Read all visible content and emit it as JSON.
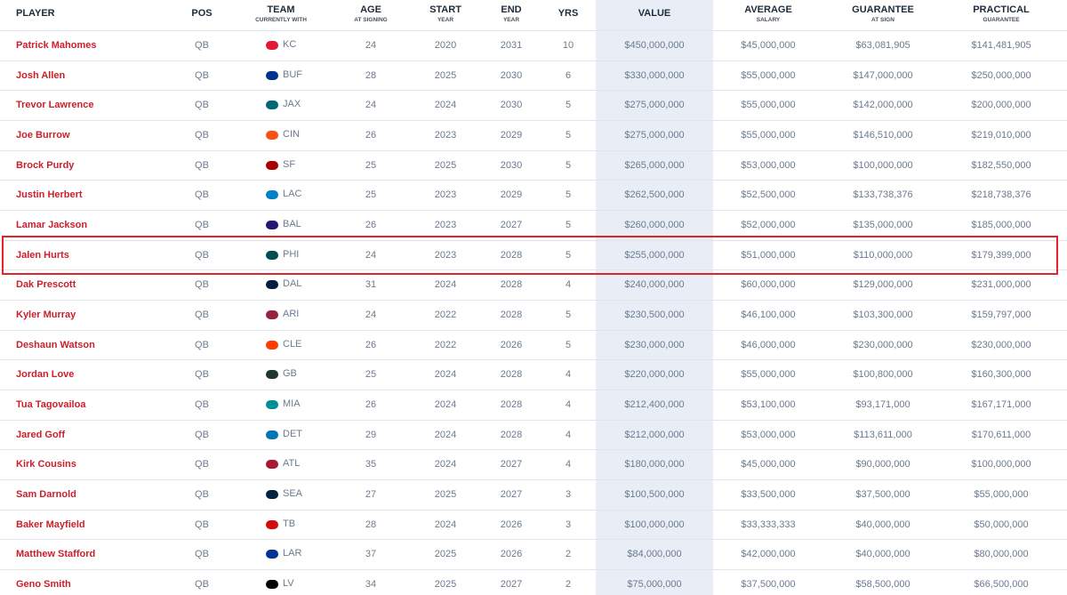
{
  "table": {
    "columns": [
      {
        "title": "PLAYER"
      },
      {
        "title": "POS"
      },
      {
        "title": "TEAM",
        "sub": "CURRENTLY WITH"
      },
      {
        "title": "AGE",
        "sub": "AT SIGNING"
      },
      {
        "title": "START",
        "sub": "YEAR"
      },
      {
        "title": "END",
        "sub": "YEAR"
      },
      {
        "title": "YRS"
      },
      {
        "title": "VALUE"
      },
      {
        "title": "AVERAGE",
        "sub": "SALARY"
      },
      {
        "title": "GUARANTEE",
        "sub": "AT SIGN"
      },
      {
        "title": "PRACTICAL",
        "sub": "GUARANTEE"
      }
    ],
    "rows": [
      [
        "Patrick Mahomes",
        "QB",
        "KC",
        24,
        2020,
        2031,
        10,
        "$450,000,000",
        "$45,000,000",
        "$63,081,905",
        "$141,481,905"
      ],
      [
        "Josh Allen",
        "QB",
        "BUF",
        28,
        2025,
        2030,
        6,
        "$330,000,000",
        "$55,000,000",
        "$147,000,000",
        "$250,000,000"
      ],
      [
        "Trevor Lawrence",
        "QB",
        "JAX",
        24,
        2024,
        2030,
        5,
        "$275,000,000",
        "$55,000,000",
        "$142,000,000",
        "$200,000,000"
      ],
      [
        "Joe Burrow",
        "QB",
        "CIN",
        26,
        2023,
        2029,
        5,
        "$275,000,000",
        "$55,000,000",
        "$146,510,000",
        "$219,010,000"
      ],
      [
        "Brock Purdy",
        "QB",
        "SF",
        25,
        2025,
        2030,
        5,
        "$265,000,000",
        "$53,000,000",
        "$100,000,000",
        "$182,550,000"
      ],
      [
        "Justin Herbert",
        "QB",
        "LAC",
        25,
        2023,
        2029,
        5,
        "$262,500,000",
        "$52,500,000",
        "$133,738,376",
        "$218,738,376"
      ],
      [
        "Lamar Jackson",
        "QB",
        "BAL",
        26,
        2023,
        2027,
        5,
        "$260,000,000",
        "$52,000,000",
        "$135,000,000",
        "$185,000,000"
      ],
      [
        "Jalen Hurts",
        "QB",
        "PHI",
        24,
        2023,
        2028,
        5,
        "$255,000,000",
        "$51,000,000",
        "$110,000,000",
        "$179,399,000"
      ],
      [
        "Dak Prescott",
        "QB",
        "DAL",
        31,
        2024,
        2028,
        4,
        "$240,000,000",
        "$60,000,000",
        "$129,000,000",
        "$231,000,000"
      ],
      [
        "Kyler Murray",
        "QB",
        "ARI",
        24,
        2022,
        2028,
        5,
        "$230,500,000",
        "$46,100,000",
        "$103,300,000",
        "$159,797,000"
      ],
      [
        "Deshaun Watson",
        "QB",
        "CLE",
        26,
        2022,
        2026,
        5,
        "$230,000,000",
        "$46,000,000",
        "$230,000,000",
        "$230,000,000"
      ],
      [
        "Jordan Love",
        "QB",
        "GB",
        25,
        2024,
        2028,
        4,
        "$220,000,000",
        "$55,000,000",
        "$100,800,000",
        "$160,300,000"
      ],
      [
        "Tua Tagovailoa",
        "QB",
        "MIA",
        26,
        2024,
        2028,
        4,
        "$212,400,000",
        "$53,100,000",
        "$93,171,000",
        "$167,171,000"
      ],
      [
        "Jared Goff",
        "QB",
        "DET",
        29,
        2024,
        2028,
        4,
        "$212,000,000",
        "$53,000,000",
        "$113,611,000",
        "$170,611,000"
      ],
      [
        "Kirk Cousins",
        "QB",
        "ATL",
        35,
        2024,
        2027,
        4,
        "$180,000,000",
        "$45,000,000",
        "$90,000,000",
        "$100,000,000"
      ],
      [
        "Sam Darnold",
        "QB",
        "SEA",
        27,
        2025,
        2027,
        3,
        "$100,500,000",
        "$33,500,000",
        "$37,500,000",
        "$55,000,000"
      ],
      [
        "Baker Mayfield",
        "QB",
        "TB",
        28,
        2024,
        2026,
        3,
        "$100,000,000",
        "$33,333,333",
        "$40,000,000",
        "$50,000,000"
      ],
      [
        "Matthew Stafford",
        "QB",
        "LAR",
        37,
        2025,
        2026,
        2,
        "$84,000,000",
        "$42,000,000",
        "$40,000,000",
        "$80,000,000"
      ],
      [
        "Geno Smith",
        "QB",
        "LV",
        34,
        2025,
        2027,
        2,
        "$75,000,000",
        "$37,500,000",
        "$58,500,000",
        "$66,500,000"
      ]
    ]
  }
}
